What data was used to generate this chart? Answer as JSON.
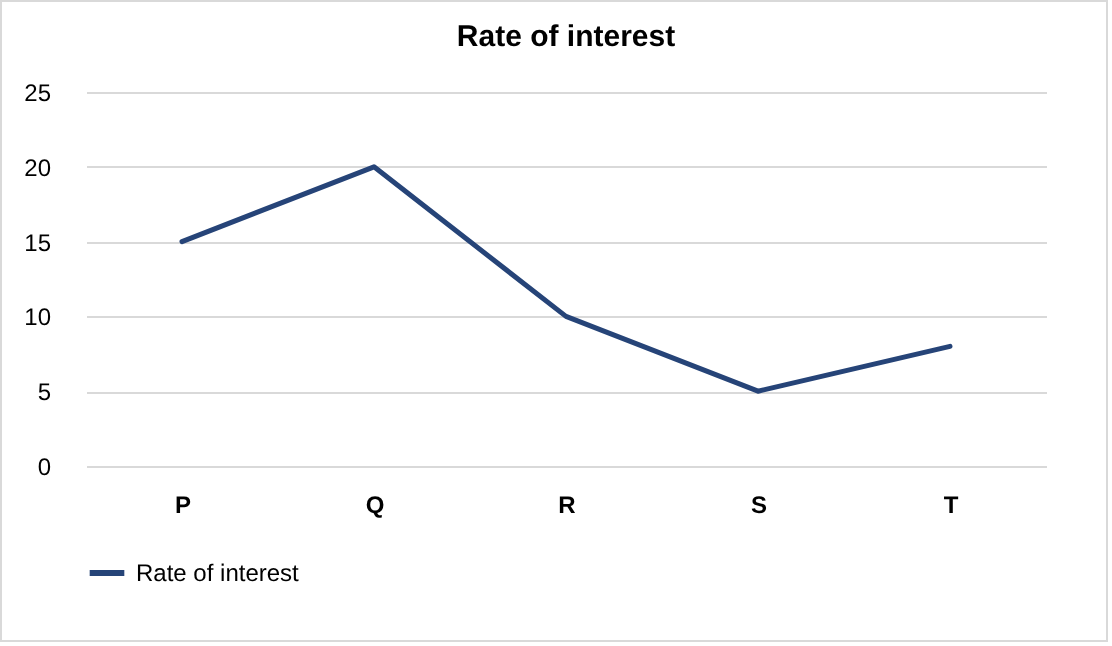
{
  "chart_data": {
    "type": "line",
    "title": "Rate of interest",
    "categories": [
      "P",
      "Q",
      "R",
      "S",
      "T"
    ],
    "series": [
      {
        "name": "Rate of interest",
        "color": "#264478",
        "values": [
          15,
          20,
          10,
          5,
          8
        ]
      }
    ],
    "ylim": [
      0,
      25
    ],
    "yticks": [
      0,
      5,
      10,
      15,
      20,
      25
    ],
    "grid": "y",
    "legend": "bottom",
    "marker": "none",
    "line_style": "solid"
  }
}
